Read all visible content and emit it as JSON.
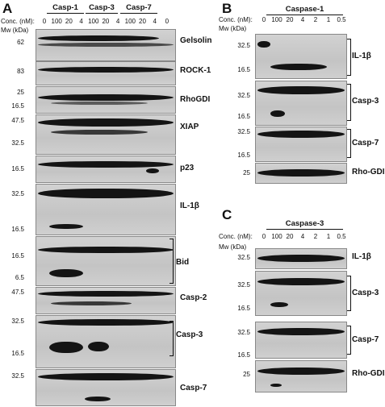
{
  "panels": {
    "A": {
      "letter": "A",
      "conc_label": "Conc. (nM):",
      "mw_label": "Mw (kDa)",
      "groups": [
        "Casp-1",
        "Casp-3",
        "Casp-7"
      ],
      "lanes": [
        "0",
        "100",
        "20",
        "4",
        "100",
        "20",
        "4",
        "100",
        "20",
        "4",
        "0"
      ],
      "blots": [
        {
          "label": "Gelsolin",
          "mw": [
            "62"
          ]
        },
        {
          "label": "ROCK-1",
          "mw": [
            "83"
          ]
        },
        {
          "label": "RhoGDI",
          "mw": [
            "25",
            "16.5"
          ]
        },
        {
          "label": "XIAP",
          "mw": [
            "47.5",
            "32.5"
          ]
        },
        {
          "label": "p23",
          "mw": [
            "16.5"
          ]
        },
        {
          "label": "IL-1β",
          "mw": [
            "32.5",
            "16.5"
          ]
        },
        {
          "label": "Bid",
          "mw": [
            "16.5",
            "6.5"
          ]
        },
        {
          "label": "Casp-2",
          "mw": [
            "47.5"
          ]
        },
        {
          "label": "Casp-3",
          "mw": [
            "32.5",
            "16.5"
          ]
        },
        {
          "label": "Casp-7",
          "mw": [
            "32.5"
          ]
        }
      ]
    },
    "B": {
      "letter": "B",
      "title": "Caspase-1",
      "conc_label": "Conc. (nM):",
      "mw_label": "Mw (kDa)",
      "lanes": [
        "0",
        "100",
        "20",
        "4",
        "2",
        "1",
        "0.5"
      ],
      "blots": [
        {
          "label": "IL-1β",
          "mw": [
            "32.5",
            "16.5"
          ]
        },
        {
          "label": "Casp-3",
          "mw": [
            "32.5",
            "16.5"
          ]
        },
        {
          "label": "Casp-7",
          "mw": [
            "32.5",
            "16.5"
          ]
        },
        {
          "label": "Rho-GDI",
          "mw": [
            "25"
          ]
        }
      ]
    },
    "C": {
      "letter": "C",
      "title": "Caspase-3",
      "conc_label": "Conc. (nM):",
      "mw_label": "Mw (kDa)",
      "lanes": [
        "0",
        "100",
        "20",
        "4",
        "2",
        "1",
        "0.5"
      ],
      "blots": [
        {
          "label": "IL-1β",
          "mw": [
            "32.5"
          ]
        },
        {
          "label": "Casp-3",
          "mw": [
            "32.5",
            "16.5"
          ]
        },
        {
          "label": "Casp-7",
          "mw": [
            "32.5",
            "16.5"
          ]
        },
        {
          "label": "Rho-GDI",
          "mw": [
            "25"
          ]
        }
      ]
    }
  }
}
